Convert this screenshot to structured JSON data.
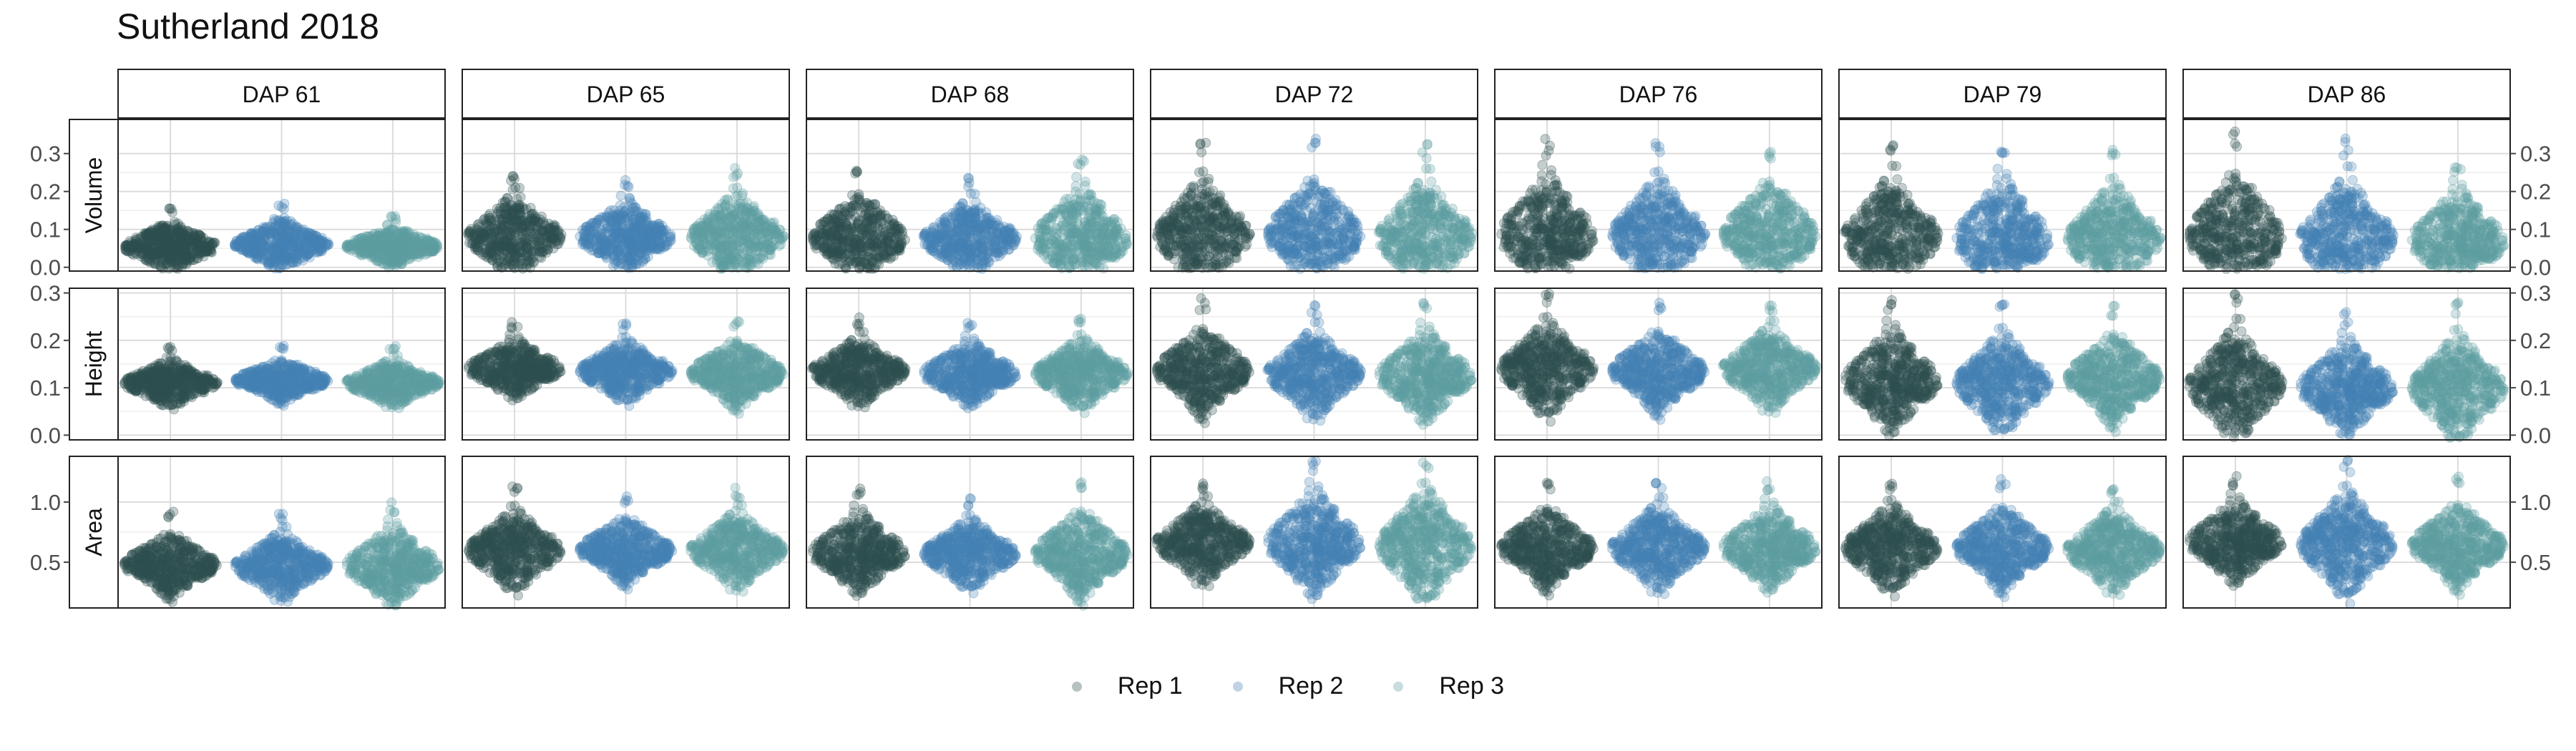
{
  "chart_data": {
    "type": "scatter",
    "title": "Sutherland 2018",
    "columns": [
      "DAP 61",
      "DAP 65",
      "DAP 68",
      "DAP 72",
      "DAP 76",
      "DAP 79",
      "DAP 86"
    ],
    "rows": [
      {
        "name": "Volume",
        "ylim": [
          -0.01,
          0.39
        ],
        "ticks": [
          0.0,
          0.1,
          0.2,
          0.3
        ],
        "tick_labels": [
          "0.0",
          "0.1",
          "0.2",
          "0.3"
        ]
      },
      {
        "name": "Height",
        "ylim": [
          -0.01,
          0.31
        ],
        "ticks": [
          0.0,
          0.1,
          0.2,
          0.3
        ],
        "tick_labels": [
          "0.0",
          "0.1",
          "0.2",
          "0.3"
        ]
      },
      {
        "name": "Area",
        "ylim": [
          0.12,
          1.38
        ],
        "ticks": [
          0.5,
          1.0
        ],
        "tick_labels": [
          "0.5",
          "1.0"
        ]
      }
    ],
    "series": [
      {
        "name": "Rep 1",
        "color": "#2f4f4f"
      },
      {
        "name": "Rep 2",
        "color": "#4682b4"
      },
      {
        "name": "Rep 3",
        "color": "#5f9ea0"
      }
    ],
    "distributions": {
      "Volume": [
        [
          [
            0.055,
            0.16
          ],
          [
            0.06,
            0.17
          ],
          [
            0.055,
            0.14
          ]
        ],
        [
          [
            0.08,
            0.26
          ],
          [
            0.08,
            0.23
          ],
          [
            0.08,
            0.27
          ]
        ],
        [
          [
            0.075,
            0.28
          ],
          [
            0.075,
            0.24
          ],
          [
            0.075,
            0.3
          ]
        ],
        [
          [
            0.085,
            0.33
          ],
          [
            0.085,
            0.34
          ],
          [
            0.08,
            0.33
          ]
        ],
        [
          [
            0.085,
            0.34
          ],
          [
            0.085,
            0.33
          ],
          [
            0.085,
            0.33
          ]
        ],
        [
          [
            0.08,
            0.34
          ],
          [
            0.075,
            0.33
          ],
          [
            0.075,
            0.31
          ]
        ],
        [
          [
            0.08,
            0.37
          ],
          [
            0.075,
            0.34
          ],
          [
            0.07,
            0.29
          ]
        ]
      ],
      "Height": [
        [
          [
            0.11,
            0.19
          ],
          [
            0.115,
            0.19
          ],
          [
            0.11,
            0.19
          ]
        ],
        [
          [
            0.14,
            0.24
          ],
          [
            0.135,
            0.24
          ],
          [
            0.13,
            0.25
          ]
        ],
        [
          [
            0.135,
            0.25
          ],
          [
            0.13,
            0.24
          ],
          [
            0.13,
            0.25
          ]
        ],
        [
          [
            0.135,
            0.29
          ],
          [
            0.13,
            0.28
          ],
          [
            0.125,
            0.28
          ]
        ],
        [
          [
            0.14,
            0.3
          ],
          [
            0.135,
            0.28
          ],
          [
            0.14,
            0.28
          ]
        ],
        [
          [
            0.115,
            0.29
          ],
          [
            0.11,
            0.28
          ],
          [
            0.12,
            0.28
          ]
        ],
        [
          [
            0.105,
            0.3
          ],
          [
            0.1,
            0.26
          ],
          [
            0.1,
            0.28
          ]
        ]
      ],
      "Area": [
        [
          [
            0.48,
            0.92
          ],
          [
            0.47,
            0.92
          ],
          [
            0.47,
            1.0
          ]
        ],
        [
          [
            0.6,
            1.14
          ],
          [
            0.6,
            1.06
          ],
          [
            0.6,
            1.12
          ]
        ],
        [
          [
            0.58,
            1.12
          ],
          [
            0.57,
            1.04
          ],
          [
            0.57,
            1.18
          ]
        ],
        [
          [
            0.66,
            1.2
          ],
          [
            0.66,
            1.36
          ],
          [
            0.64,
            1.4
          ]
        ],
        [
          [
            0.62,
            1.18
          ],
          [
            0.62,
            1.2
          ],
          [
            0.62,
            1.18
          ]
        ],
        [
          [
            0.62,
            1.2
          ],
          [
            0.62,
            1.2
          ],
          [
            0.6,
            1.16
          ]
        ],
        [
          [
            0.67,
            1.22
          ],
          [
            0.65,
            1.36
          ],
          [
            0.64,
            1.22
          ]
        ]
      ]
    },
    "left_axis_rows": [
      "Volume",
      "Height",
      "Area"
    ],
    "right_axis_rows": [
      "Volume",
      "Height",
      "Area"
    ],
    "grid": true,
    "legend_position": "bottom",
    "xlabel": "",
    "ylabel": ""
  }
}
